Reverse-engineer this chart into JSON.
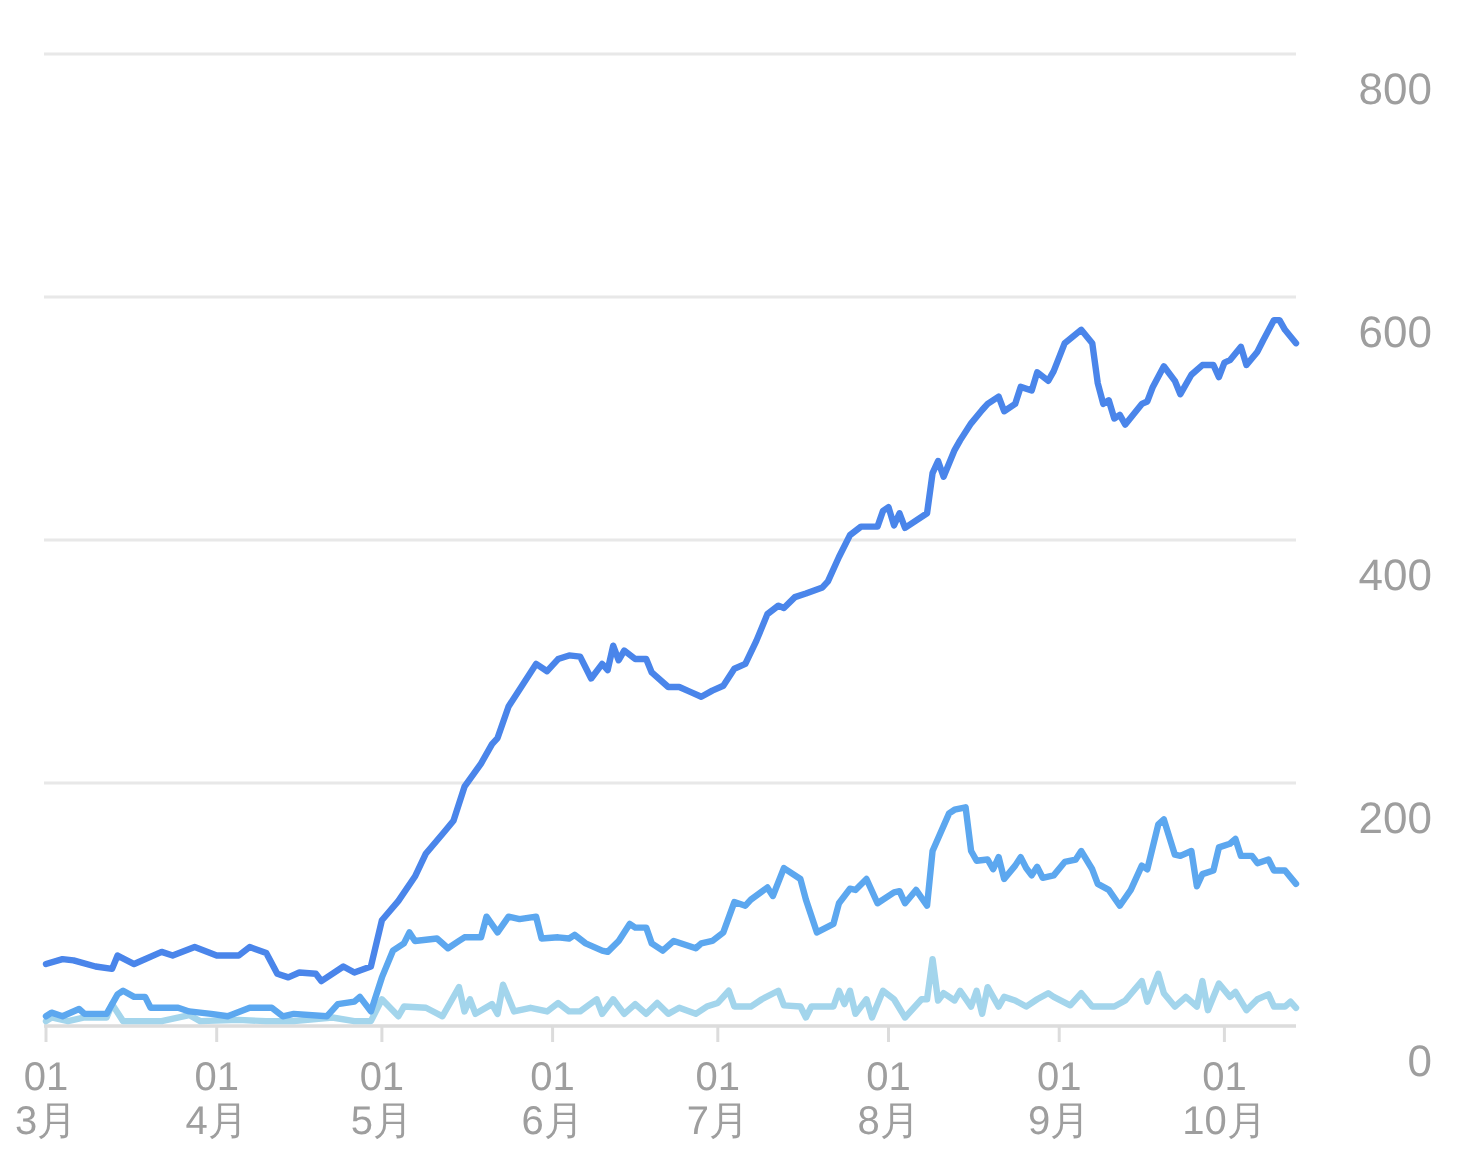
{
  "chart_data": {
    "type": "line",
    "series": [
      {
        "color": "#4a85ea",
        "x": [
          "--03-01",
          "--03-04",
          "--03-06",
          "--03-10",
          "--03-13",
          "--03-14",
          "--03-17",
          "--03-22",
          "--03-24",
          "--03-28",
          "--04-01",
          "--04-05",
          "--04-07",
          "--04-10",
          "--04-12",
          "--04-14",
          "--04-16",
          "--04-19",
          "--04-20",
          "--04-24",
          "--04-26",
          "--04-29",
          "--05-01",
          "--05-04",
          "--05-07",
          "--05-09",
          "--05-12",
          "--05-14",
          "--05-16",
          "--05-19",
          "--05-21",
          "--05-22",
          "--05-24",
          "--05-27",
          "--05-29",
          "--05-31",
          "--06-02",
          "--06-04",
          "--06-06",
          "--06-08",
          "--06-10",
          "--06-11",
          "--06-12",
          "--06-13",
          "--06-14",
          "--06-16",
          "--06-18",
          "--06-19",
          "--06-22",
          "--06-24",
          "--06-26",
          "--06-28",
          "--06-30",
          "--07-02",
          "--07-04",
          "--07-06",
          "--07-08",
          "--07-10",
          "--07-12",
          "--07-13",
          "--07-15",
          "--07-17",
          "--07-20",
          "--07-21",
          "--07-23",
          "--07-25",
          "--07-27",
          "--07-30",
          "--07-31",
          "--08-01",
          "--08-02",
          "--08-03",
          "--08-04",
          "--08-08",
          "--08-09",
          "--08-10",
          "--08-11",
          "--08-13",
          "--08-14",
          "--08-16",
          "--08-18",
          "--08-19",
          "--08-21",
          "--08-22",
          "--08-24",
          "--08-25",
          "--08-27",
          "--08-28",
          "--08-30",
          "--08-31",
          "--09-02",
          "--09-05",
          "--09-07",
          "--09-08",
          "--09-09",
          "--09-10",
          "--09-11",
          "--09-12",
          "--09-13",
          "--09-16",
          "--09-17",
          "--09-18",
          "--09-20",
          "--09-22",
          "--09-23",
          "--09-25",
          "--09-27",
          "--09-29",
          "--09-30",
          "--10-01",
          "--10-02",
          "--10-04",
          "--10-05",
          "--10-07",
          "--10-08",
          "--10-10",
          "--10-11",
          "--10-12",
          "--10-14"
        ],
        "values": [
          51,
          55,
          54,
          49,
          47,
          58,
          51,
          61,
          58,
          65,
          58,
          58,
          65,
          60,
          43,
          40,
          44,
          43,
          37,
          49,
          44,
          49,
          87,
          103,
          123,
          142,
          158,
          169,
          197,
          216,
          232,
          237,
          263,
          284,
          298,
          292,
          302,
          305,
          304,
          286,
          298,
          293,
          313,
          301,
          309,
          302,
          302,
          291,
          279,
          279,
          275,
          271,
          276,
          280,
          294,
          298,
          317,
          339,
          346,
          344,
          353,
          356,
          361,
          366,
          386,
          404,
          411,
          411,
          424,
          427,
          412,
          422,
          410,
          422,
          455,
          465,
          452,
          474,
          482,
          496,
          507,
          512,
          518,
          506,
          512,
          526,
          523,
          538,
          531,
          539,
          562,
          573,
          562,
          529,
          512,
          515,
          500,
          503,
          495,
          512,
          514,
          526,
          543,
          531,
          520,
          536,
          544,
          544,
          534,
          546,
          548,
          559,
          544,
          555,
          564,
          581,
          581,
          573,
          562
        ]
      },
      {
        "color": "#5ca7ef",
        "x": [
          "--03-01",
          "--03-02",
          "--03-04",
          "--03-07",
          "--03-08",
          "--03-12",
          "--03-14",
          "--03-15",
          "--03-17",
          "--03-19",
          "--03-20",
          "--03-25",
          "--03-27",
          "--03-31",
          "--04-03",
          "--04-07",
          "--04-11",
          "--04-13",
          "--04-15",
          "--04-21",
          "--04-23",
          "--04-26",
          "--04-27",
          "--04-29",
          "--05-01",
          "--05-03",
          "--05-05",
          "--05-06",
          "--05-07",
          "--05-11",
          "--05-13",
          "--05-15",
          "--05-16",
          "--05-19",
          "--05-20",
          "--05-22",
          "--05-24",
          "--05-26",
          "--05-29",
          "--05-30",
          "--06-02",
          "--06-04",
          "--06-05",
          "--06-07",
          "--06-10",
          "--06-11",
          "--06-13",
          "--06-15",
          "--06-16",
          "--06-18",
          "--06-19",
          "--06-21",
          "--06-23",
          "--06-27",
          "--06-28",
          "--06-30",
          "--07-02",
          "--07-04",
          "--07-06",
          "--07-07",
          "--07-10",
          "--07-11",
          "--07-13",
          "--07-16",
          "--07-17",
          "--07-19",
          "--07-22",
          "--07-23",
          "--07-25",
          "--07-26",
          "--07-28",
          "--07-30",
          "--08-02",
          "--08-03",
          "--08-04",
          "--08-06",
          "--08-08",
          "--08-09",
          "--08-12",
          "--08-13",
          "--08-15",
          "--08-16",
          "--08-17",
          "--08-19",
          "--08-20",
          "--08-21",
          "--08-22",
          "--08-24",
          "--08-25",
          "--08-26",
          "--08-27",
          "--08-28",
          "--08-29",
          "--08-31",
          "--09-02",
          "--09-04",
          "--09-05",
          "--09-07",
          "--09-08",
          "--09-10",
          "--09-12",
          "--09-14",
          "--09-16",
          "--09-17",
          "--09-19",
          "--09-20",
          "--09-22",
          "--09-23",
          "--09-25",
          "--09-26",
          "--09-27",
          "--09-29",
          "--09-30",
          "--10-02",
          "--10-03",
          "--10-04",
          "--10-06",
          "--10-07",
          "--10-09",
          "--10-10",
          "--10-12",
          "--10-14"
        ],
        "values": [
          8,
          11,
          8,
          14,
          10,
          10,
          26,
          29,
          24,
          24,
          15,
          15,
          12,
          10,
          8,
          15,
          15,
          8,
          10,
          8,
          18,
          20,
          24,
          12,
          40,
          62,
          68,
          77,
          70,
          72,
          64,
          70,
          73,
          73,
          90,
          77,
          90,
          88,
          90,
          72,
          73,
          72,
          75,
          68,
          62,
          61,
          70,
          84,
          81,
          81,
          68,
          62,
          70,
          64,
          68,
          70,
          77,
          102,
          99,
          104,
          114,
          107,
          130,
          121,
          104,
          77,
          84,
          101,
          113,
          112,
          121,
          101,
          110,
          111,
          101,
          112,
          99,
          144,
          175,
          178,
          180,
          144,
          136,
          137,
          129,
          139,
          121,
          132,
          139,
          130,
          124,
          131,
          122,
          124,
          135,
          137,
          144,
          129,
          117,
          112,
          99,
          112,
          132,
          129,
          166,
          170,
          141,
          140,
          144,
          115,
          125,
          128,
          147,
          150,
          154,
          140,
          140,
          134,
          137,
          128,
          128,
          117
        ]
      },
      {
        "color": "#a3d5ec",
        "x": [
          "--03-01",
          "--03-02",
          "--03-05",
          "--03-08",
          "--03-12",
          "--03-13",
          "--03-15",
          "--03-22",
          "--03-27",
          "--03-29",
          "--04-05",
          "--04-10",
          "--04-15",
          "--04-22",
          "--04-26",
          "--04-29",
          "--05-01",
          "--05-04",
          "--05-05",
          "--05-09",
          "--05-12",
          "--05-15",
          "--05-16",
          "--05-17",
          "--05-18",
          "--05-21",
          "--05-22",
          "--05-23",
          "--05-25",
          "--05-28",
          "--05-31",
          "--06-02",
          "--06-04",
          "--06-06",
          "--06-09",
          "--06-10",
          "--06-12",
          "--06-14",
          "--06-16",
          "--06-18",
          "--06-20",
          "--06-22",
          "--06-24",
          "--06-27",
          "--06-29",
          "--07-01",
          "--07-03",
          "--07-04",
          "--07-07",
          "--07-09",
          "--07-12",
          "--07-13",
          "--07-16",
          "--07-17",
          "--07-18",
          "--07-22",
          "--07-23",
          "--07-24",
          "--07-25",
          "--07-26",
          "--07-28",
          "--07-29",
          "--07-31",
          "--08-02",
          "--08-04",
          "--08-07",
          "--08-08",
          "--08-09",
          "--08-10",
          "--08-11",
          "--08-13",
          "--08-14",
          "--08-16",
          "--08-17",
          "--08-18",
          "--08-19",
          "--08-21",
          "--08-22",
          "--08-24",
          "--08-26",
          "--08-28",
          "--08-30",
          "--08-31",
          "--09-03",
          "--09-05",
          "--09-07",
          "--09-11",
          "--09-13",
          "--09-16",
          "--09-17",
          "--09-19",
          "--09-20",
          "--09-22",
          "--09-24",
          "--09-26",
          "--09-27",
          "--09-28",
          "--09-30",
          "--10-02",
          "--10-03",
          "--10-05",
          "--10-07",
          "--10-09",
          "--10-10",
          "--10-12",
          "--10-13",
          "--10-14"
        ],
        "values": [
          4,
          7,
          4,
          7,
          7,
          18,
          4,
          4,
          9,
          4,
          5,
          4,
          4,
          7,
          4,
          4,
          22,
          8,
          16,
          15,
          8,
          32,
          12,
          22,
          10,
          18,
          10,
          34,
          12,
          15,
          12,
          19,
          12,
          12,
          22,
          10,
          22,
          10,
          18,
          10,
          19,
          10,
          15,
          10,
          16,
          19,
          29,
          16,
          16,
          22,
          29,
          17,
          16,
          7,
          16,
          16,
          29,
          18,
          29,
          10,
          22,
          7,
          29,
          22,
          7,
          22,
          22,
          55,
          21,
          27,
          21,
          29,
          16,
          29,
          10,
          32,
          16,
          24,
          21,
          16,
          22,
          27,
          24,
          17,
          27,
          16,
          16,
          21,
          37,
          20,
          43,
          27,
          16,
          24,
          16,
          37,
          13,
          35,
          24,
          28,
          13,
          22,
          26,
          16,
          16,
          20,
          15
        ]
      }
    ],
    "xlim": [
      "--03-01",
      "--10-14"
    ],
    "xticks": [
      {
        "value": "--03-01",
        "label": "01\n3月"
      },
      {
        "value": "--04-01",
        "label": "01\n4月"
      },
      {
        "value": "--05-01",
        "label": "01\n5月"
      },
      {
        "value": "--06-01",
        "label": "01\n6月"
      },
      {
        "value": "--07-01",
        "label": "01\n7月"
      },
      {
        "value": "--08-01",
        "label": "01\n8月"
      },
      {
        "value": "--09-01",
        "label": "01\n9月"
      },
      {
        "value": "--10-01",
        "label": "01\n10月"
      }
    ],
    "ylim": [
      0,
      800
    ],
    "yticks": [
      0,
      200,
      400,
      600,
      800
    ],
    "grid": "y"
  }
}
